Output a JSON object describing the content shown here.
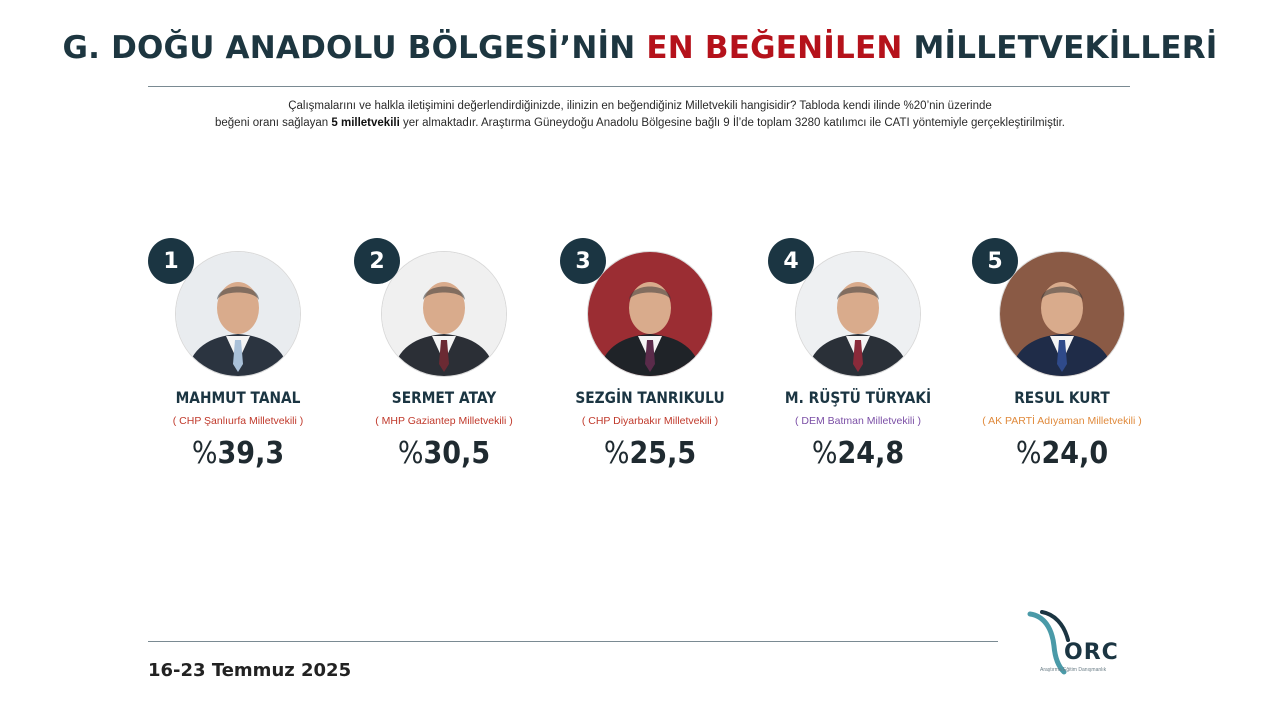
{
  "title": {
    "part1": "G. DOĞU ANADOLU BÖLGESİ’NİN",
    "highlight": "EN BEĞENİLEN",
    "part2": "MİLLETVEKİLLERİ"
  },
  "description": {
    "line1": "Çalışmalarını ve halkla iletişimini değerlendirdiğinizde, ilinizin en beğendiğiniz Milletvekili hangisidir? Tabloda kendi ilinde %20’nin üzerinde",
    "line2_pre": "beğeni oranı sağlayan",
    "line2_bold": "5 milletvekili",
    "line2_post": "yer almaktadır. Araştırma Güneydoğu Anadolu Bölgesine bağlı 9 İl’de toplam 3280 katılımcı ile  CATI yöntemiyle gerçekleştirilmiştir."
  },
  "ranking": [
    {
      "rank": "1",
      "name": "MAHMUT TANAL",
      "party": "( CHP Şanlıurfa Milletvekili )",
      "party_color": "#c0392b",
      "percent_sign": "%",
      "value": "39,3",
      "bg": "#e9ecef",
      "suit": "#2b3440",
      "tie": "#a9c0d8"
    },
    {
      "rank": "2",
      "name": "SERMET ATAY",
      "party": "( MHP Gaziantep Milletvekili )",
      "party_color": "#c0392b",
      "percent_sign": "%",
      "value": "30,5",
      "bg": "#f0f0f0",
      "suit": "#2b2f36",
      "tie": "#6b2a33"
    },
    {
      "rank": "3",
      "name": "SEZGİN TANRIKULU",
      "party": "( CHP Diyarbakır Milletvekili )",
      "party_color": "#c0392b",
      "percent_sign": "%",
      "value": "25,5",
      "bg": "#9b2d33",
      "suit": "#1f2328",
      "tie": "#5a2b4a"
    },
    {
      "rank": "4",
      "name": "M. RÜŞTÜ TÜRYAKİ",
      "party": "( DEM Batman Milletvekili )",
      "party_color": "#7b4fa6",
      "percent_sign": "%",
      "value": "24,8",
      "bg": "#eef0f2",
      "suit": "#2a3038",
      "tie": "#8a2a3a"
    },
    {
      "rank": "5",
      "name": "RESUL KURT",
      "party": "( AK PARTİ Adıyaman Milletvekili )",
      "party_color": "#e08a3c",
      "percent_sign": "%",
      "value": "24,0",
      "bg": "#8a5a45",
      "suit": "#1f2c48",
      "tie": "#2f4a8a"
    }
  ],
  "footer": {
    "date": "16-23 Temmuz 2025",
    "logo_text": "ORC",
    "logo_tag": "Araştırma Eğitim Danışmanlık"
  },
  "colors": {
    "navy": "#1b3542",
    "accent_red": "#b5121b"
  }
}
